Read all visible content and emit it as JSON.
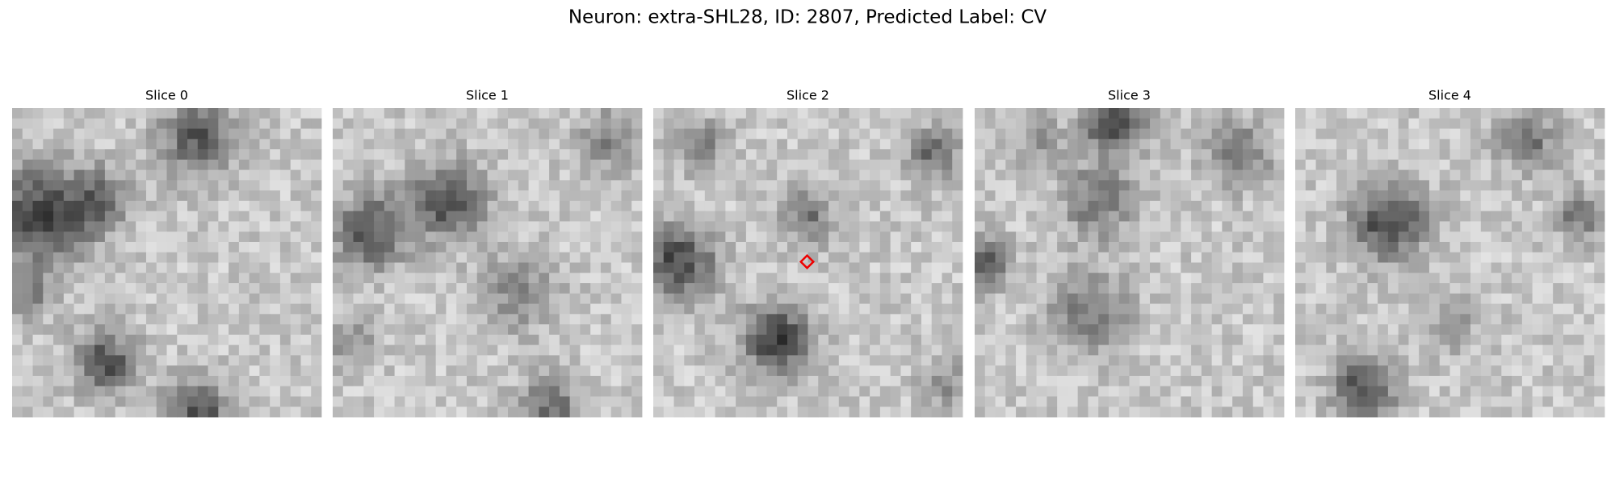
{
  "title": "Neuron: extra-SHL28, ID: 2807, Predicted Label: CV",
  "panels": [
    {
      "title": "Slice 0"
    },
    {
      "title": "Slice 1"
    },
    {
      "title": "Slice 2"
    },
    {
      "title": "Slice 3"
    },
    {
      "title": "Slice 4"
    }
  ]
}
